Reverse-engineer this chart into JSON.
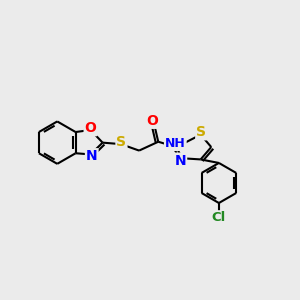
{
  "background_color": "#ebebeb",
  "bond_color": "#000000",
  "bond_width": 1.5,
  "atom_colors": {
    "C": "#000000",
    "N": "#0000ff",
    "O": "#ff0000",
    "S": "#ccaa00",
    "Cl": "#228822",
    "H": "#000000"
  },
  "font_size": 8.5,
  "figsize": [
    3.0,
    3.0
  ],
  "dpi": 100
}
